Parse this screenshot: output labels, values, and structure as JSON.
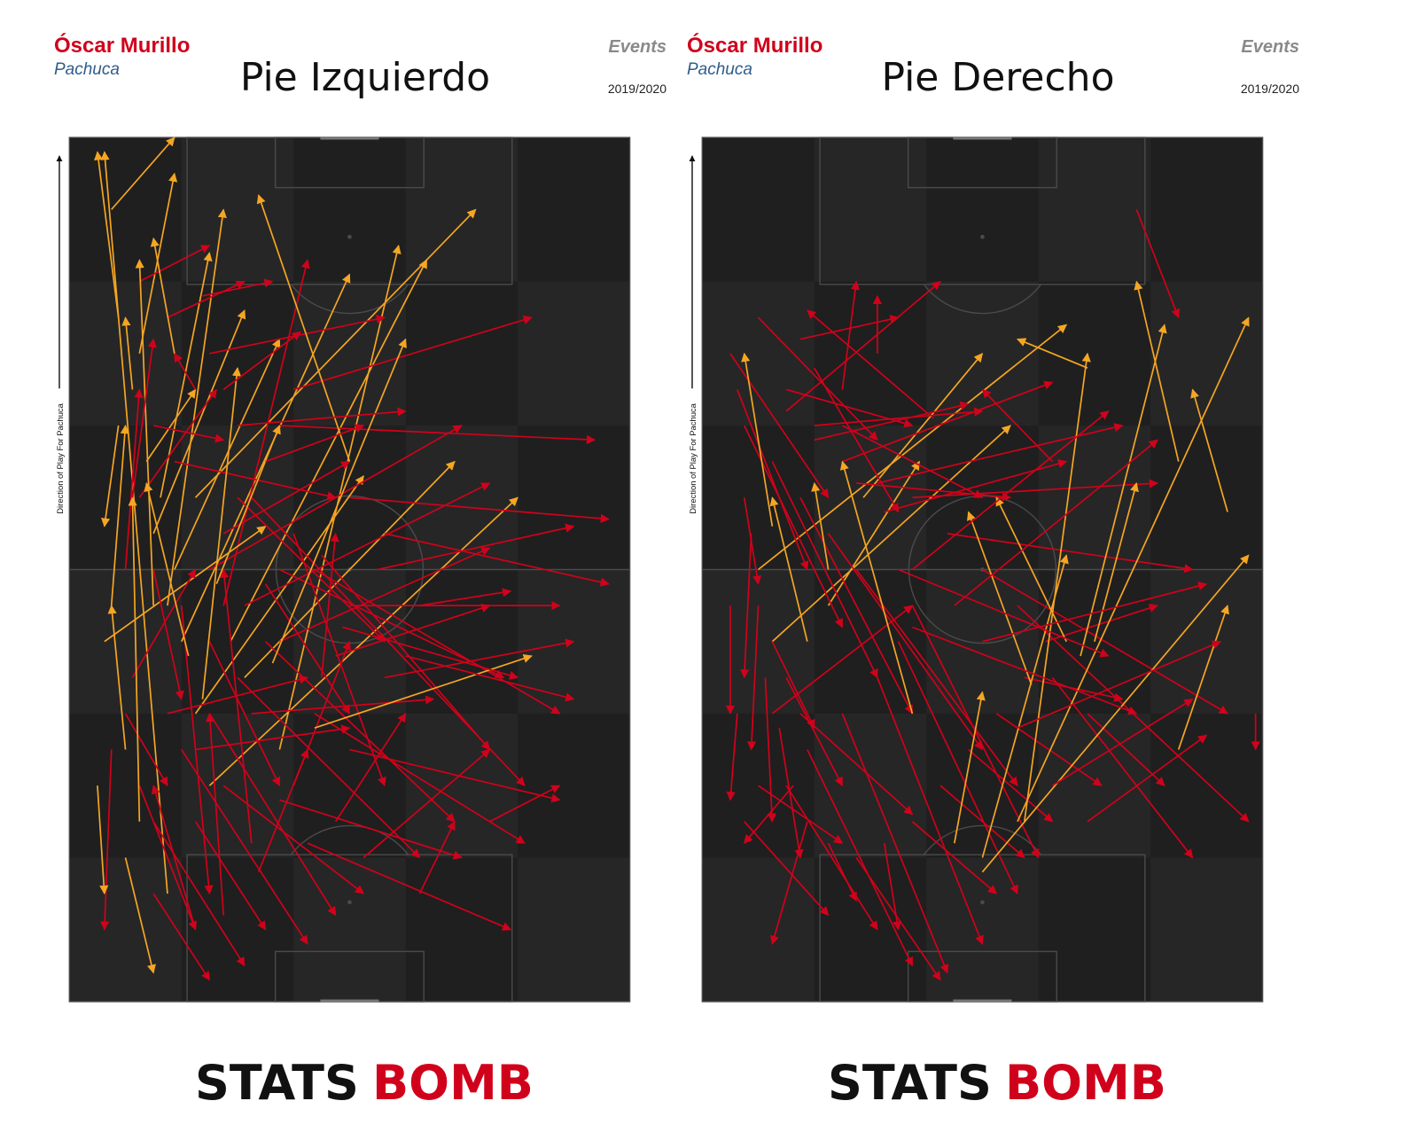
{
  "panels": [
    {
      "id": "left",
      "player": "Óscar Murillo",
      "team": "Pachuca",
      "title": "Pie Izquierdo",
      "events_label": "Events",
      "season": "2019/2020",
      "direction_label": "Direction of Play For Pachuca",
      "brand_left": "STATS",
      "brand_right": "BOMB"
    },
    {
      "id": "right",
      "player": "Óscar Murillo",
      "team": "Pachuca",
      "title": "Pie Derecho",
      "events_label": "Events",
      "season": "2019/2020",
      "direction_label": "Direction of Play For Pachuca",
      "brand_left": "STATS",
      "brand_right": "BOMB"
    }
  ],
  "colors": {
    "pass": "#d0021b",
    "high_pass": "#f5a623",
    "pitch_dark": "#1f1f1f",
    "pitch_light": "#262626",
    "pitch_lines": "#4a4a4a",
    "brand_black": "#111111",
    "brand_red": "#d0021b"
  },
  "chart_data": [
    {
      "type": "scatter",
      "title": "Pie Izquierdo",
      "x_range": [
        0,
        80
      ],
      "y_range": [
        0,
        120
      ],
      "passes": [
        [
          14,
          15,
          5,
          118,
          1
        ],
        [
          7,
          95,
          4,
          118,
          1
        ],
        [
          10,
          90,
          15,
          115,
          1
        ],
        [
          7,
          80,
          5,
          66,
          1
        ],
        [
          11,
          75,
          18,
          85,
          1
        ],
        [
          13,
          70,
          20,
          104,
          1
        ],
        [
          15,
          60,
          30,
          92,
          1
        ],
        [
          16,
          50,
          40,
          101,
          1
        ],
        [
          14,
          55,
          22,
          110,
          1
        ],
        [
          9,
          85,
          8,
          95,
          1
        ],
        [
          12,
          65,
          25,
          96,
          1
        ],
        [
          18,
          70,
          58,
          110,
          1
        ],
        [
          23,
          50,
          51,
          103,
          1
        ],
        [
          22,
          55,
          34,
          103,
          0
        ],
        [
          25,
          45,
          55,
          75,
          1
        ],
        [
          30,
          35,
          47,
          105,
          1
        ],
        [
          20,
          30,
          64,
          70,
          1
        ],
        [
          18,
          40,
          42,
          73,
          1
        ],
        [
          5,
          50,
          28,
          66,
          1
        ],
        [
          8,
          60,
          10,
          85,
          0
        ],
        [
          10,
          70,
          21,
          85,
          0
        ],
        [
          12,
          80,
          22,
          78,
          0
        ],
        [
          15,
          75,
          38,
          70,
          0
        ],
        [
          20,
          60,
          56,
          80,
          0
        ],
        [
          25,
          55,
          60,
          72,
          0
        ],
        [
          30,
          50,
          60,
          63,
          0
        ],
        [
          22,
          65,
          40,
          75,
          0
        ],
        [
          18,
          85,
          15,
          90,
          0
        ],
        [
          10,
          100,
          20,
          105,
          0
        ],
        [
          6,
          110,
          15,
          120,
          1
        ],
        [
          8,
          40,
          14,
          30,
          0
        ],
        [
          10,
          30,
          18,
          10,
          0
        ],
        [
          12,
          25,
          25,
          5,
          0
        ],
        [
          16,
          35,
          34,
          8,
          0
        ],
        [
          20,
          40,
          38,
          12,
          0
        ],
        [
          24,
          45,
          50,
          20,
          0
        ],
        [
          28,
          50,
          55,
          25,
          0
        ],
        [
          30,
          60,
          62,
          45,
          0
        ],
        [
          26,
          70,
          65,
          30,
          0
        ],
        [
          35,
          60,
          70,
          40,
          0
        ],
        [
          40,
          55,
          70,
          55,
          0
        ],
        [
          45,
          65,
          77,
          58,
          0
        ],
        [
          40,
          70,
          77,
          67,
          0
        ],
        [
          30,
          80,
          75,
          78,
          0
        ],
        [
          32,
          85,
          66,
          95,
          0
        ],
        [
          20,
          90,
          45,
          95,
          0
        ],
        [
          14,
          95,
          25,
          100,
          0
        ],
        [
          8,
          20,
          12,
          4,
          1
        ],
        [
          12,
          15,
          20,
          3,
          0
        ],
        [
          18,
          25,
          28,
          10,
          0
        ],
        [
          22,
          30,
          42,
          15,
          0
        ],
        [
          35,
          40,
          65,
          22,
          0
        ],
        [
          40,
          35,
          70,
          28,
          0
        ],
        [
          45,
          45,
          72,
          50,
          0
        ],
        [
          38,
          48,
          60,
          55,
          0
        ],
        [
          28,
          58,
          40,
          40,
          0
        ],
        [
          32,
          65,
          45,
          30,
          0
        ],
        [
          36,
          62,
          60,
          35,
          0
        ],
        [
          24,
          70,
          45,
          50,
          0
        ],
        [
          20,
          50,
          30,
          30,
          0
        ],
        [
          16,
          55,
          20,
          15,
          0
        ],
        [
          12,
          60,
          16,
          42,
          0
        ],
        [
          9,
          45,
          18,
          60,
          0
        ],
        [
          14,
          40,
          34,
          45,
          0
        ],
        [
          18,
          35,
          40,
          38,
          0
        ],
        [
          26,
          40,
          52,
          42,
          0
        ],
        [
          30,
          28,
          56,
          20,
          0
        ],
        [
          34,
          22,
          63,
          10,
          0
        ],
        [
          6,
          35,
          5,
          10,
          0
        ],
        [
          4,
          30,
          5,
          15,
          1
        ],
        [
          6,
          55,
          8,
          80,
          1
        ],
        [
          18,
          10,
          12,
          30,
          0
        ],
        [
          22,
          12,
          20,
          40,
          0
        ],
        [
          27,
          18,
          34,
          35,
          0
        ],
        [
          26,
          22,
          22,
          60,
          0
        ],
        [
          32,
          30,
          40,
          50,
          0
        ],
        [
          42,
          20,
          60,
          35,
          0
        ],
        [
          50,
          15,
          55,
          25,
          0
        ],
        [
          60,
          25,
          70,
          30,
          0
        ],
        [
          38,
          25,
          48,
          40,
          0
        ],
        [
          21,
          58,
          30,
          80,
          1
        ],
        [
          19,
          42,
          24,
          88,
          1
        ],
        [
          17,
          48,
          11,
          72,
          1
        ],
        [
          15,
          90,
          12,
          106,
          1
        ],
        [
          12,
          55,
          10,
          103,
          1
        ],
        [
          8,
          35,
          6,
          55,
          1
        ],
        [
          10,
          25,
          9,
          70,
          1
        ],
        [
          29,
          47,
          48,
          92,
          1
        ],
        [
          35,
          38,
          66,
          48,
          1
        ],
        [
          40,
          75,
          27,
          112,
          1
        ],
        [
          36,
          45,
          38,
          65,
          0
        ],
        [
          28,
          75,
          42,
          80,
          0
        ],
        [
          44,
          60,
          72,
          66,
          0
        ],
        [
          50,
          55,
          63,
          57,
          0
        ],
        [
          48,
          48,
          72,
          42,
          0
        ],
        [
          39,
          52,
          64,
          45,
          0
        ],
        [
          24,
          80,
          48,
          82,
          0
        ],
        [
          22,
          85,
          33,
          93,
          0
        ],
        [
          19,
          98,
          29,
          100,
          0
        ],
        [
          9,
          70,
          12,
          92,
          0
        ]
      ]
    },
    {
      "type": "scatter",
      "title": "Pie Derecho",
      "x_range": [
        0,
        80
      ],
      "y_range": [
        0,
        120
      ],
      "passes": [
        [
          33,
          81,
          15,
          96,
          0
        ],
        [
          23,
          70,
          40,
          90,
          1
        ],
        [
          8,
          60,
          52,
          94,
          1
        ],
        [
          10,
          50,
          44,
          80,
          1
        ],
        [
          18,
          55,
          31,
          75,
          1
        ],
        [
          10,
          40,
          30,
          55,
          0
        ],
        [
          12,
          30,
          25,
          10,
          0
        ],
        [
          15,
          35,
          30,
          5,
          0
        ],
        [
          20,
          40,
          35,
          4,
          0
        ],
        [
          25,
          45,
          40,
          8,
          0
        ],
        [
          28,
          50,
          45,
          15,
          0
        ],
        [
          30,
          55,
          48,
          20,
          0
        ],
        [
          22,
          60,
          45,
          30,
          0
        ],
        [
          18,
          65,
          40,
          35,
          0
        ],
        [
          14,
          70,
          30,
          40,
          0
        ],
        [
          10,
          75,
          25,
          45,
          0
        ],
        [
          6,
          80,
          20,
          52,
          0
        ],
        [
          5,
          85,
          15,
          60,
          0
        ],
        [
          4,
          90,
          18,
          70,
          0
        ],
        [
          8,
          95,
          25,
          78,
          0
        ],
        [
          12,
          85,
          30,
          80,
          0
        ],
        [
          16,
          80,
          40,
          82,
          0
        ],
        [
          20,
          75,
          50,
          86,
          0
        ],
        [
          25,
          72,
          60,
          80,
          0
        ],
        [
          30,
          70,
          65,
          72,
          0
        ],
        [
          35,
          65,
          70,
          60,
          0
        ],
        [
          40,
          60,
          75,
          40,
          0
        ],
        [
          45,
          55,
          78,
          25,
          0
        ],
        [
          50,
          45,
          70,
          20,
          0
        ],
        [
          55,
          40,
          66,
          30,
          0
        ],
        [
          7,
          65,
          6,
          45,
          0
        ],
        [
          8,
          55,
          7,
          35,
          0
        ],
        [
          9,
          45,
          10,
          25,
          0
        ],
        [
          11,
          38,
          14,
          20,
          0
        ],
        [
          13,
          30,
          6,
          22,
          0
        ],
        [
          15,
          25,
          10,
          8,
          0
        ],
        [
          18,
          22,
          22,
          14,
          0
        ],
        [
          22,
          20,
          34,
          3,
          0
        ],
        [
          26,
          22,
          28,
          10,
          0
        ],
        [
          30,
          25,
          42,
          15,
          0
        ],
        [
          34,
          30,
          46,
          20,
          0
        ],
        [
          38,
          35,
          50,
          25,
          0
        ],
        [
          42,
          40,
          57,
          30,
          0
        ],
        [
          46,
          45,
          60,
          42,
          0
        ],
        [
          49,
          50,
          65,
          55,
          0
        ],
        [
          20,
          85,
          22,
          100,
          0
        ],
        [
          25,
          90,
          25,
          98,
          0
        ],
        [
          14,
          92,
          28,
          95,
          0
        ],
        [
          12,
          82,
          34,
          100,
          0
        ],
        [
          16,
          78,
          38,
          83,
          0
        ],
        [
          50,
          75,
          40,
          85,
          0
        ],
        [
          55,
          88,
          45,
          92,
          1
        ],
        [
          62,
          110,
          68,
          95,
          0
        ],
        [
          75,
          68,
          70,
          85,
          1
        ],
        [
          68,
          75,
          62,
          100,
          1
        ],
        [
          54,
          48,
          66,
          94,
          1
        ],
        [
          52,
          50,
          42,
          70,
          1
        ],
        [
          47,
          44,
          38,
          68,
          1
        ],
        [
          40,
          20,
          52,
          62,
          1
        ],
        [
          36,
          22,
          40,
          43,
          1
        ],
        [
          18,
          60,
          16,
          72,
          1
        ],
        [
          10,
          66,
          6,
          90,
          1
        ],
        [
          15,
          50,
          10,
          70,
          1
        ],
        [
          30,
          40,
          20,
          75,
          1
        ],
        [
          46,
          25,
          55,
          90,
          1
        ],
        [
          40,
          18,
          78,
          62,
          1
        ],
        [
          45,
          25,
          78,
          95,
          1
        ],
        [
          56,
          50,
          62,
          72,
          1
        ],
        [
          68,
          35,
          75,
          55,
          1
        ],
        [
          79,
          40,
          79,
          35,
          0
        ],
        [
          55,
          25,
          72,
          37,
          0
        ],
        [
          50,
          30,
          70,
          42,
          0
        ],
        [
          45,
          38,
          74,
          50,
          0
        ],
        [
          40,
          50,
          72,
          58,
          0
        ],
        [
          36,
          55,
          65,
          78,
          0
        ],
        [
          30,
          60,
          58,
          82,
          0
        ],
        [
          26,
          68,
          52,
          75,
          0
        ],
        [
          22,
          72,
          44,
          70,
          0
        ],
        [
          20,
          80,
          40,
          70,
          0
        ],
        [
          16,
          88,
          28,
          68,
          0
        ],
        [
          10,
          50,
          16,
          38,
          0
        ],
        [
          12,
          45,
          20,
          30,
          0
        ],
        [
          14,
          40,
          30,
          26,
          0
        ],
        [
          8,
          30,
          20,
          22,
          0
        ],
        [
          6,
          25,
          18,
          12,
          0
        ],
        [
          5,
          40,
          4,
          28,
          0
        ],
        [
          4,
          55,
          4,
          40,
          0
        ],
        [
          6,
          70,
          8,
          58,
          0
        ],
        [
          28,
          60,
          58,
          48,
          0
        ],
        [
          30,
          52,
          62,
          40,
          0
        ]
      ]
    }
  ]
}
